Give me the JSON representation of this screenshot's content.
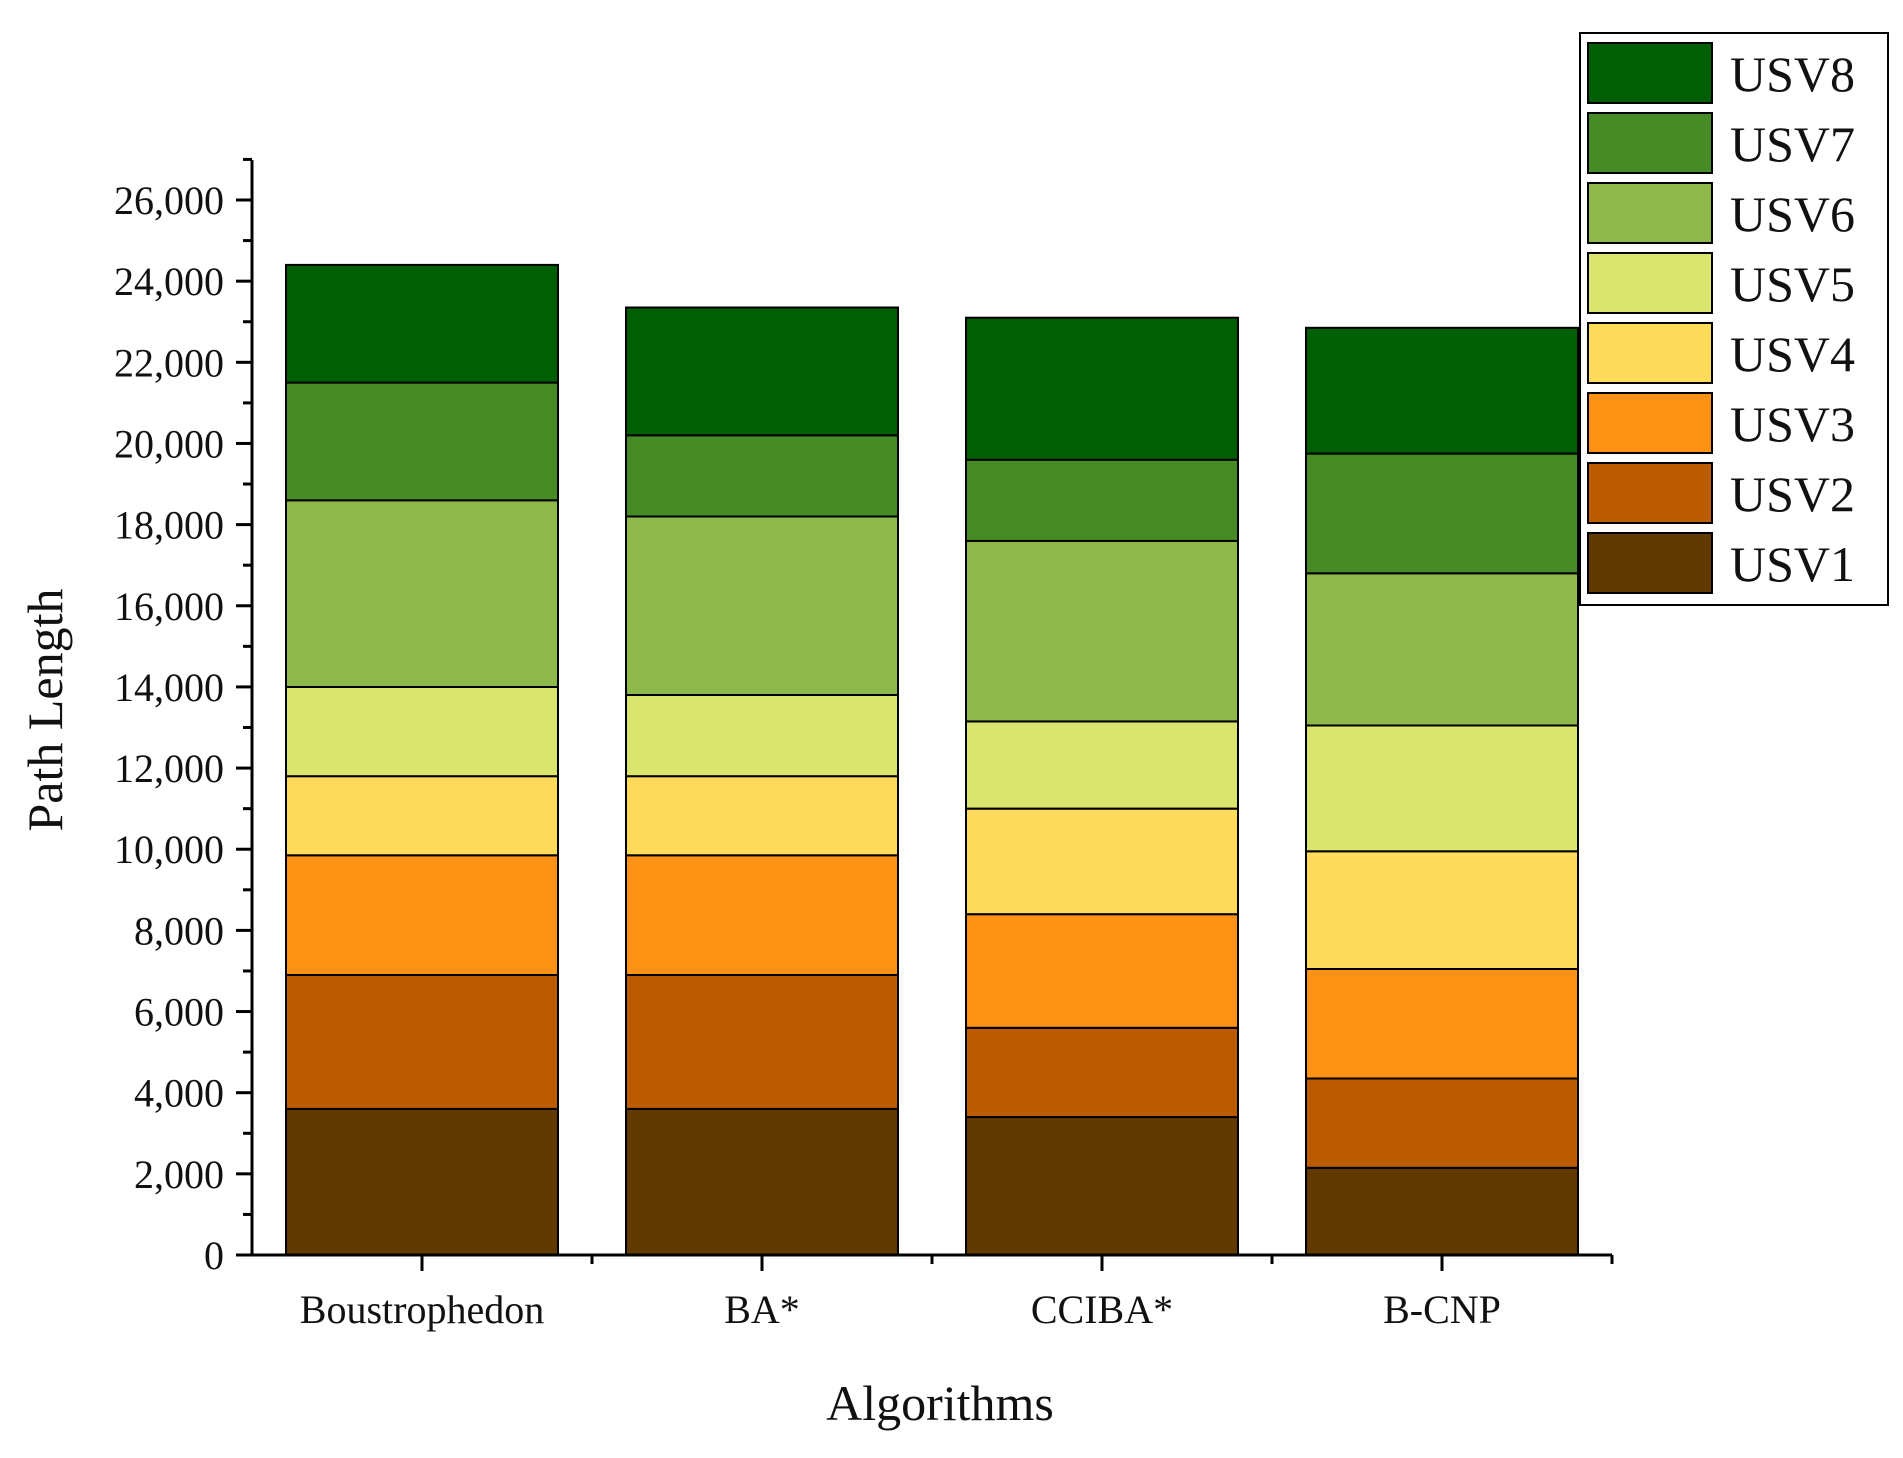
{
  "chart_data": {
    "type": "bar",
    "stacked": true,
    "title": "",
    "xlabel": "Algorithms",
    "ylabel": "Path Length",
    "ylim": [
      0,
      27000
    ],
    "yticks": [
      0,
      2000,
      4000,
      6000,
      8000,
      10000,
      12000,
      14000,
      16000,
      18000,
      20000,
      22000,
      24000,
      26000
    ],
    "ytick_labels": [
      "0",
      "2,000",
      "4,000",
      "6,000",
      "8,000",
      "10,000",
      "12,000",
      "14,000",
      "16,000",
      "18,000",
      "20,000",
      "22,000",
      "24,000",
      "26,000"
    ],
    "grid": false,
    "legend_position": "top-right",
    "categories": [
      "Boustrophedon",
      "BA*",
      "CCIBA*",
      "B-CNP"
    ],
    "series": [
      {
        "name": "USV1",
        "color": "#603A00",
        "values": [
          3600,
          3600,
          3400,
          2150
        ]
      },
      {
        "name": "USV2",
        "color": "#BC5C00",
        "values": [
          3300,
          3300,
          2200,
          2200
        ]
      },
      {
        "name": "USV3",
        "color": "#FD9215",
        "values": [
          2950,
          2950,
          2800,
          2700
        ]
      },
      {
        "name": "USV4",
        "color": "#FFDB5C",
        "values": [
          1950,
          1950,
          2600,
          2900
        ]
      },
      {
        "name": "USV5",
        "color": "#D9E56F",
        "values": [
          2200,
          2000,
          2150,
          3100
        ]
      },
      {
        "name": "USV6",
        "color": "#8FB84B",
        "values": [
          4600,
          4400,
          4450,
          3750
        ]
      },
      {
        "name": "USV7",
        "color": "#478B27",
        "values": [
          2900,
          2000,
          2000,
          2950
        ]
      },
      {
        "name": "USV8",
        "color": "#005E04",
        "values": [
          2900,
          3150,
          3500,
          3100
        ]
      }
    ]
  }
}
